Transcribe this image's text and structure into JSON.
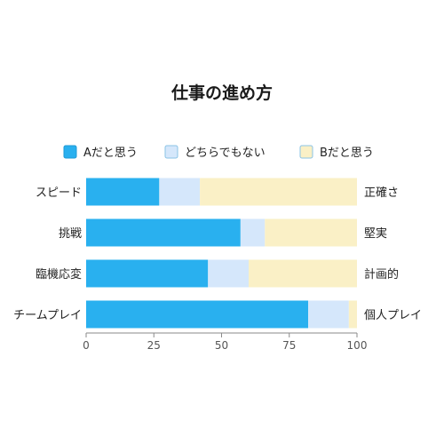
{
  "chart_data": {
    "type": "bar",
    "orientation": "horizontal",
    "stacked": true,
    "title": "仕事の進め方",
    "categories": [
      "スピード",
      "挑戦",
      "臨機応変",
      "チームプレイ"
    ],
    "right_labels": [
      "正確さ",
      "堅実",
      "計画的",
      "個人プレイ"
    ],
    "series": [
      {
        "name": "Aだと思う",
        "color": "#29b0ef",
        "values": [
          27,
          57,
          45,
          82
        ]
      },
      {
        "name": "どちらでもない",
        "color": "#d5e7fb",
        "values": [
          15,
          9,
          15,
          15
        ]
      },
      {
        "name": "Bだと思う",
        "color": "#faf0c6",
        "values": [
          58,
          34,
          40,
          3
        ]
      }
    ],
    "xlim": [
      0,
      100
    ],
    "xticks": [
      0,
      25,
      50,
      75,
      100
    ],
    "xlabel": "",
    "ylabel": "",
    "legend_position": "top",
    "grid": false
  }
}
